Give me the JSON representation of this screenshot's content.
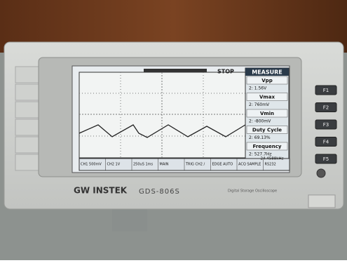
{
  "screen": {
    "status": "STOP",
    "measure": {
      "title": "MEASURE",
      "items": [
        {
          "label": "Vpp",
          "value": "2: 1.56V"
        },
        {
          "label": "Vmax",
          "value": "2: 760mV"
        },
        {
          "label": "Vmin",
          "value": "2: -800mV"
        },
        {
          "label": "Duty Cycle",
          "value": "2: 69.13%"
        },
        {
          "label": "Frequency",
          "value": "2: 527.7Hz"
        }
      ]
    },
    "bottom_bar": [
      "CH1 500mV",
      "CH2 1V",
      "250uS 1ms",
      "MAIN",
      "TRIG CH2 /",
      "EDGE AUTO",
      "ACQ SAMPLE",
      "RS232"
    ],
    "readout": "24.4588kHz"
  },
  "brand": "GW INSTEK",
  "model": "GDS-806S",
  "subtitle": "Digital Storage Oscilloscope",
  "buttons": [
    "F1",
    "F2",
    "F3",
    "F4",
    "F5"
  ]
}
